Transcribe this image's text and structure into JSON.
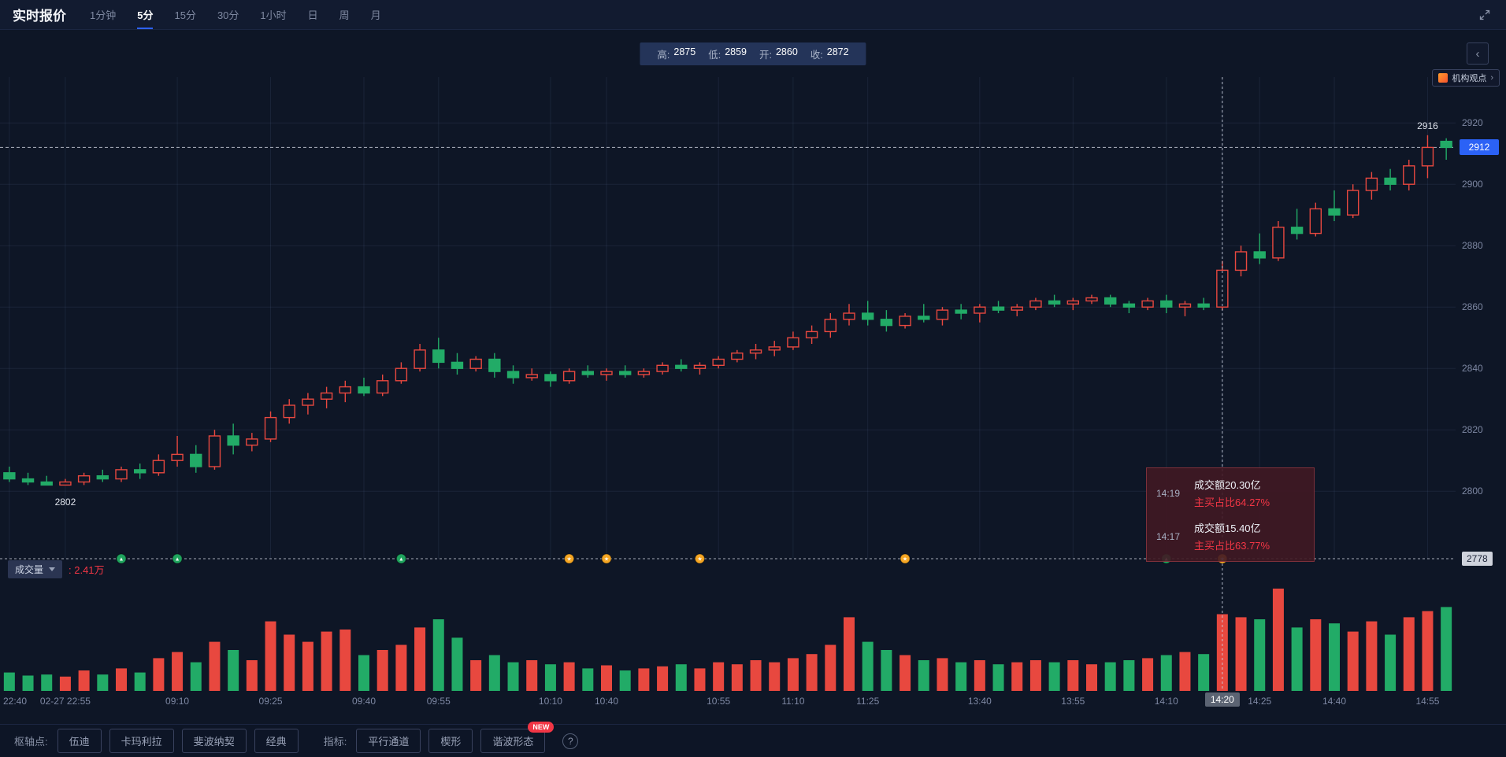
{
  "header": {
    "title": "实时报价",
    "timeframes": [
      "1分钟",
      "5分",
      "15分",
      "30分",
      "1小时",
      "日",
      "周",
      "月"
    ],
    "active_timeframe": "5分"
  },
  "ohlc_bar": {
    "items": [
      {
        "label": "高:",
        "value": "2875"
      },
      {
        "label": "低:",
        "value": "2859"
      },
      {
        "label": "开:",
        "value": "2860"
      },
      {
        "label": "收:",
        "value": "2872"
      }
    ]
  },
  "panel": {
    "collapse_icon": "‹",
    "institution_label": "机构观点",
    "institution_chevron": "›"
  },
  "tooltip": {
    "rows": [
      {
        "time": "14:19",
        "amount": "成交额20.30亿",
        "ratio": "主买占比64.27%"
      },
      {
        "time": "14:17",
        "amount": "成交额15.40亿",
        "ratio": "主买占比63.77%"
      }
    ]
  },
  "volume_header": {
    "label": "成交量",
    "value": ": 2.41万"
  },
  "footer": {
    "pivot_label": "枢轴点:",
    "pivot_buttons": [
      "伍迪",
      "卡玛利拉",
      "斐波纳契",
      "经典"
    ],
    "indicator_label": "指标:",
    "indicator_buttons": [
      "平行通道",
      "楔形",
      "谐波形态"
    ],
    "new_badge": "NEW",
    "help_icon": "?"
  },
  "chart_data": {
    "type": "candlestick",
    "up_color": "#e8483f",
    "down_color": "#22ab67",
    "marker_colors": {
      "green": "#1fa45e",
      "orange": "#f5a623"
    },
    "price_ticks": [
      2920,
      2900,
      2880,
      2860,
      2840,
      2820,
      2800
    ],
    "price_range": [
      2778,
      2928
    ],
    "current_price": 2912,
    "bottom_line_price": 2778,
    "vline_index": 65,
    "annotations": [
      {
        "i": 3,
        "price": 2799,
        "text": "2802",
        "pos": "below"
      },
      {
        "i": 76,
        "price": 2916,
        "text": "2916",
        "pos": "above"
      }
    ],
    "x_ticks": [
      {
        "i": 0,
        "label": "22:40"
      },
      {
        "i": 3,
        "label": "02-27 22:55"
      },
      {
        "i": 9,
        "label": "09:10"
      },
      {
        "i": 14,
        "label": "09:25"
      },
      {
        "i": 19,
        "label": "09:40"
      },
      {
        "i": 23,
        "label": "09:55"
      },
      {
        "i": 29,
        "label": "10:10"
      },
      {
        "i": 32,
        "label": "10:40"
      },
      {
        "i": 38,
        "label": "10:55"
      },
      {
        "i": 42,
        "label": "11:10"
      },
      {
        "i": 46,
        "label": "11:25"
      },
      {
        "i": 52,
        "label": "13:40"
      },
      {
        "i": 57,
        "label": "13:55"
      },
      {
        "i": 62,
        "label": "14:10"
      },
      {
        "i": 65,
        "label": "14:20",
        "highlight": true
      },
      {
        "i": 67,
        "label": "14:25"
      },
      {
        "i": 71,
        "label": "14:40"
      },
      {
        "i": 76,
        "label": "14:55"
      }
    ],
    "markers": [
      {
        "i": 6,
        "color": "green"
      },
      {
        "i": 9,
        "color": "green"
      },
      {
        "i": 21,
        "color": "green"
      },
      {
        "i": 30,
        "color": "orange"
      },
      {
        "i": 32,
        "color": "orange"
      },
      {
        "i": 37,
        "color": "orange"
      },
      {
        "i": 48,
        "color": "orange"
      },
      {
        "i": 62,
        "color": "green"
      },
      {
        "i": 65,
        "color": "orange"
      }
    ],
    "candles": [
      [
        2806,
        2808,
        2803,
        2804,
        18
      ],
      [
        2804,
        2806,
        2802,
        2803,
        15
      ],
      [
        2803,
        2805,
        2802,
        2802,
        16
      ],
      [
        2802,
        2804,
        2802,
        2803,
        14
      ],
      [
        2803,
        2806,
        2802,
        2805,
        20
      ],
      [
        2805,
        2807,
        2803,
        2804,
        16
      ],
      [
        2804,
        2808,
        2803,
        2807,
        22
      ],
      [
        2807,
        2809,
        2804,
        2806,
        18
      ],
      [
        2806,
        2812,
        2805,
        2810,
        32
      ],
      [
        2810,
        2818,
        2808,
        2812,
        38
      ],
      [
        2812,
        2815,
        2806,
        2808,
        28
      ],
      [
        2808,
        2820,
        2807,
        2818,
        48
      ],
      [
        2818,
        2822,
        2812,
        2815,
        40
      ],
      [
        2815,
        2819,
        2813,
        2817,
        30
      ],
      [
        2817,
        2826,
        2816,
        2824,
        68
      ],
      [
        2824,
        2830,
        2822,
        2828,
        55
      ],
      [
        2828,
        2832,
        2825,
        2830,
        48
      ],
      [
        2830,
        2834,
        2827,
        2832,
        58
      ],
      [
        2832,
        2836,
        2829,
        2834,
        60
      ],
      [
        2834,
        2837,
        2831,
        2832,
        35
      ],
      [
        2832,
        2838,
        2831,
        2836,
        40
      ],
      [
        2836,
        2842,
        2835,
        2840,
        45
      ],
      [
        2840,
        2848,
        2839,
        2846,
        62
      ],
      [
        2846,
        2850,
        2840,
        2842,
        70
      ],
      [
        2842,
        2845,
        2838,
        2840,
        52
      ],
      [
        2840,
        2844,
        2839,
        2843,
        30
      ],
      [
        2843,
        2845,
        2837,
        2839,
        35
      ],
      [
        2839,
        2841,
        2835,
        2837,
        28
      ],
      [
        2837,
        2840,
        2836,
        2838,
        30
      ],
      [
        2838,
        2839,
        2834,
        2836,
        26
      ],
      [
        2836,
        2840,
        2835,
        2839,
        28
      ],
      [
        2839,
        2841,
        2837,
        2838,
        22
      ],
      [
        2838,
        2840,
        2836,
        2839,
        25
      ],
      [
        2839,
        2841,
        2837,
        2838,
        20
      ],
      [
        2838,
        2840,
        2837,
        2839,
        22
      ],
      [
        2839,
        2842,
        2838,
        2841,
        24
      ],
      [
        2841,
        2843,
        2839,
        2840,
        26
      ],
      [
        2840,
        2842,
        2838,
        2841,
        22
      ],
      [
        2841,
        2844,
        2840,
        2843,
        28
      ],
      [
        2843,
        2846,
        2842,
        2845,
        26
      ],
      [
        2845,
        2848,
        2843,
        2846,
        30
      ],
      [
        2846,
        2849,
        2844,
        2847,
        28
      ],
      [
        2847,
        2852,
        2846,
        2850,
        32
      ],
      [
        2850,
        2854,
        2848,
        2852,
        36
      ],
      [
        2852,
        2858,
        2850,
        2856,
        45
      ],
      [
        2856,
        2861,
        2854,
        2858,
        72
      ],
      [
        2858,
        2862,
        2854,
        2856,
        48
      ],
      [
        2856,
        2859,
        2852,
        2854,
        40
      ],
      [
        2854,
        2858,
        2853,
        2857,
        35
      ],
      [
        2857,
        2861,
        2855,
        2856,
        30
      ],
      [
        2856,
        2860,
        2854,
        2859,
        32
      ],
      [
        2859,
        2861,
        2856,
        2858,
        28
      ],
      [
        2858,
        2861,
        2855,
        2860,
        30
      ],
      [
        2860,
        2862,
        2858,
        2859,
        26
      ],
      [
        2859,
        2861,
        2857,
        2860,
        28
      ],
      [
        2860,
        2863,
        2859,
        2862,
        30
      ],
      [
        2862,
        2864,
        2860,
        2861,
        28
      ],
      [
        2861,
        2863,
        2859,
        2862,
        30
      ],
      [
        2862,
        2864,
        2861,
        2863,
        26
      ],
      [
        2863,
        2864,
        2860,
        2861,
        28
      ],
      [
        2861,
        2862,
        2858,
        2860,
        30
      ],
      [
        2860,
        2863,
        2859,
        2862,
        32
      ],
      [
        2862,
        2864,
        2858,
        2860,
        35
      ],
      [
        2860,
        2862,
        2857,
        2861,
        38
      ],
      [
        2861,
        2863,
        2859,
        2860,
        36
      ],
      [
        2860,
        2875,
        2859,
        2872,
        75
      ],
      [
        2872,
        2880,
        2870,
        2878,
        72
      ],
      [
        2878,
        2884,
        2874,
        2876,
        70
      ],
      [
        2876,
        2888,
        2875,
        2886,
        100
      ],
      [
        2886,
        2892,
        2882,
        2884,
        62
      ],
      [
        2884,
        2894,
        2883,
        2892,
        70
      ],
      [
        2892,
        2898,
        2888,
        2890,
        66
      ],
      [
        2890,
        2900,
        2889,
        2898,
        58
      ],
      [
        2898,
        2904,
        2895,
        2902,
        68
      ],
      [
        2902,
        2905,
        2898,
        2900,
        55
      ],
      [
        2900,
        2908,
        2898,
        2906,
        72
      ],
      [
        2906,
        2916,
        2902,
        2912,
        78
      ],
      [
        2914,
        2915,
        2908,
        2912,
        82
      ]
    ]
  }
}
